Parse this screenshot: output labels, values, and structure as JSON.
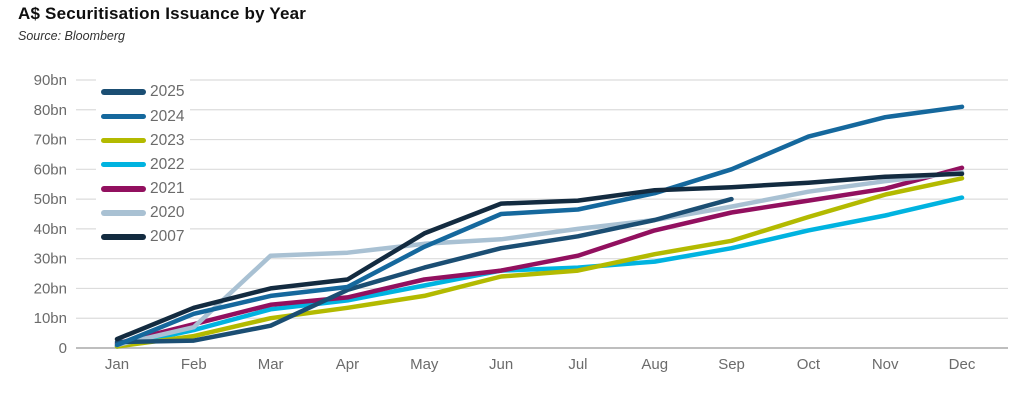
{
  "title": "A$ Securitisation Issuance by Year",
  "source": "Source: Bloomberg",
  "colors": {
    "gridline": "#dcdcdc",
    "axis_line": "#a9a9a9",
    "tick_label": "#6b6b6b",
    "legend_label": "#6b6b6b",
    "title_text": "#0f0f0f",
    "source_text": "#333333"
  },
  "chart_data": {
    "type": "line",
    "title": "A$ Securitisation Issuance by Year",
    "subtitle": "Source: Bloomberg",
    "unit": "A$ billions",
    "categories": [
      "Jan",
      "Feb",
      "Mar",
      "Apr",
      "May",
      "Jun",
      "Jul",
      "Aug",
      "Sep",
      "Oct",
      "Nov",
      "Dec"
    ],
    "ylim": [
      0,
      90
    ],
    "ytick_step": 10,
    "ytick_labels": [
      "90bn",
      "80bn",
      "70bn",
      "60bn",
      "50bn",
      "40bn",
      "30bn",
      "20bn",
      "10bn",
      "0"
    ],
    "grid": true,
    "legend_position": "top-left-vertical",
    "series": [
      {
        "name": "2025",
        "color": "#1b4e73",
        "values": [
          2,
          2.5,
          7.5,
          19.5,
          27,
          33.5,
          37.5,
          43,
          50,
          null,
          null,
          null
        ]
      },
      {
        "name": "2024",
        "color": "#15689d",
        "values": [
          1,
          11.5,
          17.5,
          20.5,
          34,
          45,
          46.5,
          52,
          60,
          71,
          77.5,
          81
        ]
      },
      {
        "name": "2023",
        "color": "#b3ba00",
        "values": [
          0.5,
          4,
          10,
          13.5,
          17.5,
          24,
          26,
          31.5,
          36,
          44,
          51.5,
          57
        ]
      },
      {
        "name": "2022",
        "color": "#00b3e0",
        "values": [
          0.5,
          6,
          13,
          16,
          21,
          26,
          27,
          29,
          33.5,
          39.5,
          44.5,
          50.5
        ]
      },
      {
        "name": "2021",
        "color": "#92105f",
        "values": [
          1.5,
          8,
          14.5,
          17,
          23,
          26,
          31,
          39.5,
          45.5,
          49.5,
          53.5,
          60.5
        ]
      },
      {
        "name": "2020",
        "color": "#a9c1d3",
        "values": [
          1,
          7,
          31,
          32,
          35,
          36.5,
          40,
          43,
          47.5,
          52.5,
          56,
          59
        ]
      },
      {
        "name": "2007",
        "color": "#132b40",
        "values": [
          3,
          13.5,
          20,
          23,
          38.5,
          48.5,
          49.5,
          53,
          54,
          55.5,
          57.5,
          58.5
        ]
      }
    ],
    "draw_order": [
      "2022",
      "2023",
      "2021",
      "2020",
      "2025",
      "2024",
      "2007"
    ]
  }
}
